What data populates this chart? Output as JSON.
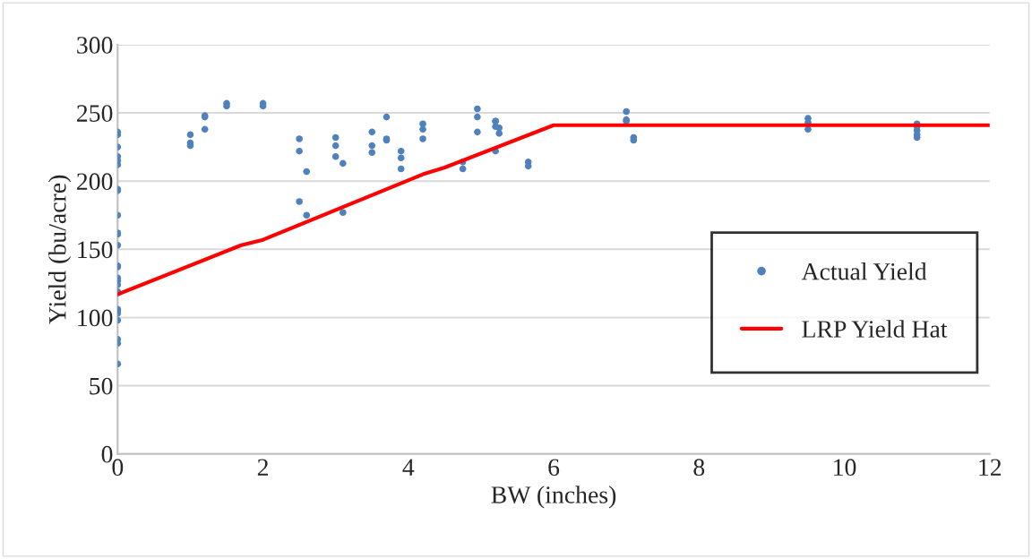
{
  "chart_data": {
    "type": "scatter",
    "xlabel": "BW (inches)",
    "ylabel": "Yield (bu/acre)",
    "xlim": [
      0,
      12
    ],
    "xticks": [
      0,
      2,
      4,
      6,
      8,
      10,
      12
    ],
    "ylim": [
      0,
      300
    ],
    "yticks": [
      0,
      50,
      100,
      150,
      200,
      250,
      300
    ],
    "grid": "y",
    "legend": "right",
    "marker": "circle",
    "series": [
      {
        "name": "Actual Yield",
        "color": "#4f81bd",
        "x": [
          0,
          0,
          0,
          0,
          0,
          0,
          0,
          0,
          0,
          0,
          0,
          0,
          0,
          0,
          0,
          0,
          0,
          0,
          0,
          0,
          0,
          0,
          0,
          0,
          0,
          0,
          1,
          1,
          1,
          1.2,
          1.2,
          1.2,
          1.5,
          1.5,
          2,
          2,
          2.5,
          2.5,
          2.5,
          2.6,
          2.6,
          3,
          3,
          3,
          3.1,
          3.1,
          3.5,
          3.5,
          3.5,
          3.7,
          3.7,
          3.7,
          3.9,
          3.9,
          3.9,
          4.2,
          4.2,
          4.2,
          4.75,
          4.75,
          4.95,
          4.95,
          4.95,
          5.2,
          5.2,
          5.2,
          5.2,
          5.25,
          5.25,
          5.65,
          5.65,
          7,
          7,
          7,
          7.1,
          7.1,
          9.5,
          9.5,
          9.5,
          11,
          11,
          11,
          11,
          11
        ],
        "values": [
          236,
          234,
          225,
          218,
          215,
          212,
          194,
          193,
          175,
          162,
          161,
          153,
          138,
          137,
          129,
          127,
          124,
          119,
          118,
          106,
          105,
          103,
          98,
          84,
          81,
          66,
          234,
          228,
          226,
          248,
          247,
          238,
          257,
          255,
          257,
          255,
          231,
          222,
          185,
          207,
          175,
          232,
          226,
          218,
          213,
          177,
          236,
          226,
          221,
          247,
          231,
          230,
          222,
          217,
          209,
          242,
          238,
          231,
          214,
          209,
          253,
          247,
          236,
          244,
          244,
          240,
          222,
          239,
          235,
          214,
          211,
          251,
          245,
          244,
          232,
          230,
          246,
          243,
          238,
          242,
          240,
          237,
          234,
          232
        ]
      },
      {
        "name": "LRP Yield Hat",
        "type": "line",
        "color": "#ff0000",
        "marker": "none",
        "line_style": "solid",
        "x": [
          0,
          1.7,
          2,
          4.2,
          4.5,
          6,
          12
        ],
        "values": [
          117,
          153,
          157,
          205,
          210,
          241,
          241
        ]
      }
    ]
  }
}
